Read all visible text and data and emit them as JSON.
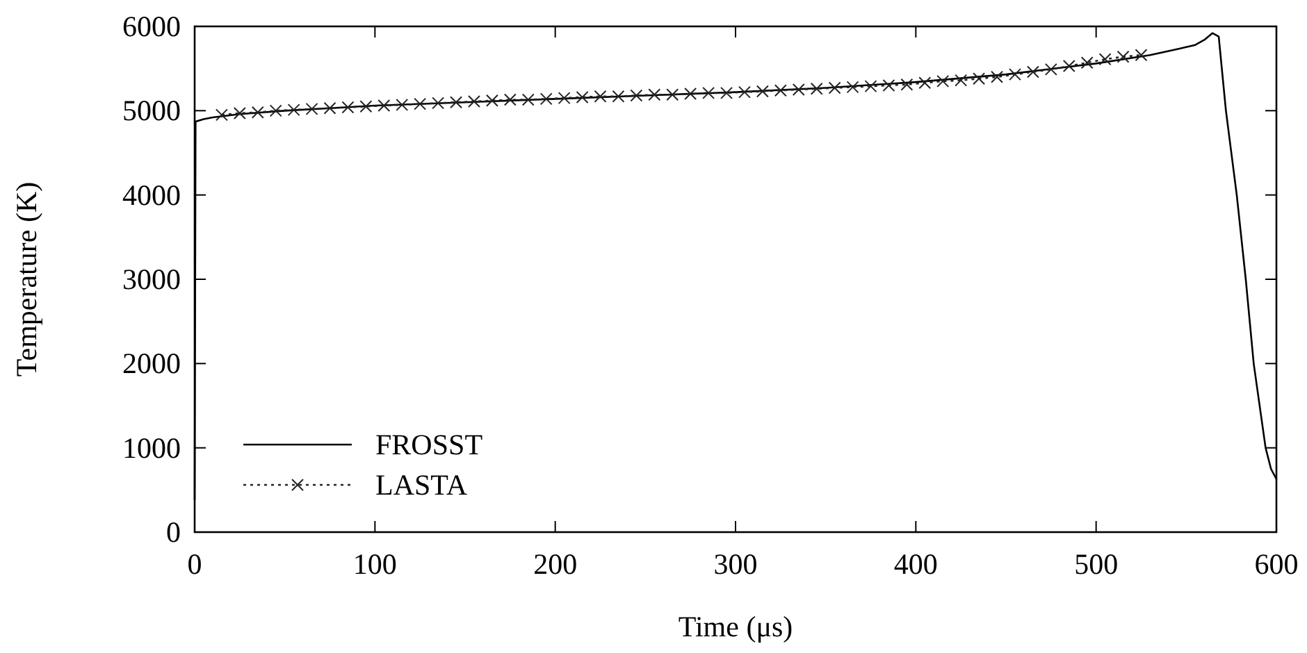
{
  "chart_data": {
    "type": "line",
    "xlabel": "Time (μs)",
    "ylabel": "Temperature (K)",
    "xlim": [
      0,
      600
    ],
    "ylim": [
      0,
      6000
    ],
    "xticks": [
      0,
      100,
      200,
      300,
      400,
      500,
      600
    ],
    "yticks": [
      0,
      1000,
      2000,
      3000,
      4000,
      5000,
      6000
    ],
    "grid": false,
    "legend": "bottom left",
    "series": [
      {
        "name": "FROSST",
        "color": "#000000",
        "line_style": "solid",
        "marker": "none",
        "x": [
          0,
          0.5,
          5,
          10,
          25,
          50,
          75,
          100,
          150,
          200,
          250,
          300,
          350,
          400,
          450,
          500,
          530,
          545,
          555,
          560,
          564.5,
          568,
          572,
          578,
          583,
          587.4,
          594,
          597,
          600
        ],
        "values": [
          380,
          4870,
          4900,
          4920,
          4960,
          5000,
          5030,
          5060,
          5100,
          5140,
          5180,
          5220,
          5270,
          5340,
          5430,
          5560,
          5660,
          5730,
          5780,
          5840,
          5920,
          5880,
          5000,
          4000,
          3000,
          2000,
          1000,
          750,
          630
        ]
      },
      {
        "name": "LASTA",
        "color": "#222222",
        "line_style": "dotted",
        "marker": "cross",
        "x": [
          15,
          25,
          35,
          45,
          55,
          65,
          75,
          85,
          95,
          105,
          115,
          125,
          135,
          145,
          155,
          165,
          175,
          185,
          195,
          205,
          215,
          225,
          235,
          245,
          255,
          265,
          275,
          285,
          295,
          305,
          315,
          325,
          335,
          345,
          355,
          365,
          375,
          385,
          395,
          405,
          415,
          425,
          435,
          445,
          455,
          465,
          475,
          485,
          495,
          505,
          515,
          525
        ],
        "values": [
          4950,
          4970,
          4980,
          5000,
          5010,
          5020,
          5030,
          5040,
          5050,
          5060,
          5070,
          5080,
          5090,
          5100,
          5110,
          5120,
          5130,
          5130,
          5140,
          5150,
          5160,
          5170,
          5170,
          5180,
          5190,
          5190,
          5200,
          5210,
          5210,
          5220,
          5230,
          5240,
          5250,
          5260,
          5270,
          5280,
          5290,
          5300,
          5310,
          5330,
          5350,
          5360,
          5380,
          5400,
          5430,
          5460,
          5490,
          5530,
          5570,
          5610,
          5640,
          5660
        ]
      }
    ]
  }
}
